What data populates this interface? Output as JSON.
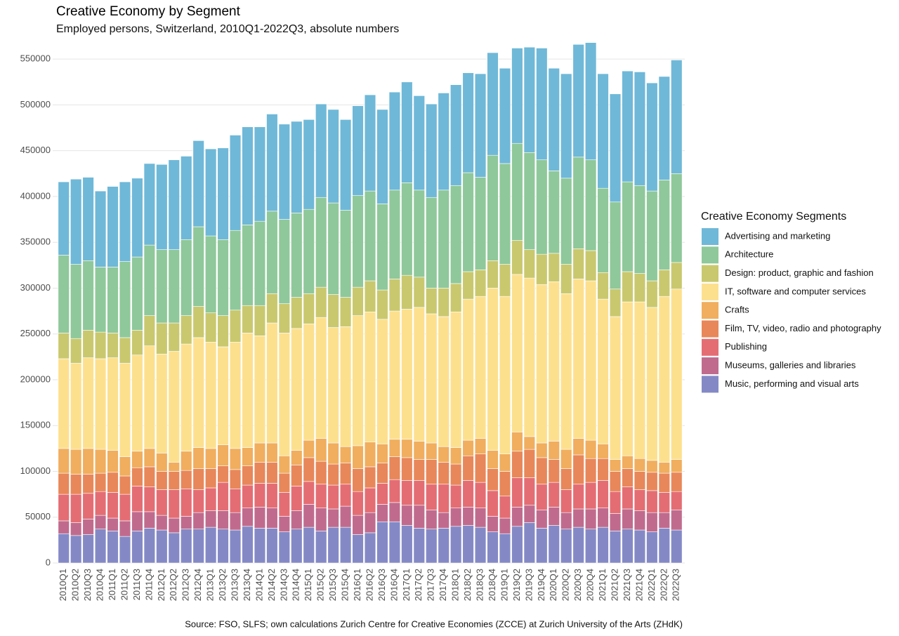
{
  "chart_data": {
    "type": "stacked_bar",
    "title": "Creative Economy by Segment",
    "subtitle": "Employed persons, Switzerland, 2010Q1-2022Q3, absolute numbers",
    "source": "Source: FSO, SLFS; own calculations Zurich Centre for Creative Economies (ZCCE) at Zurich University of the Arts (ZHdK)",
    "legend_title": "Creative Economy Segments",
    "legend_position": "right",
    "grid": true,
    "ylim": [
      0,
      580000
    ],
    "yticks": [
      0,
      50000,
      100000,
      150000,
      200000,
      250000,
      300000,
      350000,
      400000,
      450000,
      500000,
      550000
    ],
    "categories": [
      "2010Q1",
      "2010Q2",
      "2010Q3",
      "2010Q4",
      "2011Q1",
      "2011Q2",
      "2011Q3",
      "2011Q4",
      "2012Q1",
      "2012Q2",
      "2012Q3",
      "2012Q4",
      "2013Q1",
      "2013Q2",
      "2013Q3",
      "2013Q4",
      "2014Q1",
      "2014Q2",
      "2014Q3",
      "2014Q4",
      "2015Q1",
      "2015Q2",
      "2015Q3",
      "2015Q4",
      "2016Q1",
      "2016Q2",
      "2016Q3",
      "2016Q4",
      "2017Q1",
      "2017Q2",
      "2017Q3",
      "2017Q4",
      "2018Q1",
      "2018Q2",
      "2018Q3",
      "2018Q4",
      "2019Q1",
      "2019Q2",
      "2019Q3",
      "2019Q4",
      "2020Q1",
      "2020Q2",
      "2020Q3",
      "2020Q4",
      "2021Q1",
      "2021Q2",
      "2021Q3",
      "2021Q4",
      "2022Q1",
      "2022Q2",
      "2022Q3"
    ],
    "series": [
      {
        "name": "Advertising and marketing",
        "color": "#6fb8d8",
        "values": [
          80000,
          93000,
          91000,
          83000,
          88000,
          87000,
          86000,
          89000,
          93000,
          98000,
          91000,
          94000,
          95000,
          100000,
          104000,
          107000,
          103000,
          106000,
          104000,
          100000,
          98000,
          102000,
          102000,
          99000,
          98000,
          105000,
          103000,
          107000,
          110000,
          103000,
          102000,
          106000,
          110000,
          109000,
          113000,
          112000,
          104000,
          104000,
          115000,
          122000,
          112000,
          114000,
          123000,
          128000,
          125000,
          118000,
          121000,
          124000,
          118000,
          113000,
          124000
        ]
      },
      {
        "name": "Architecture",
        "color": "#8fc89a",
        "values": [
          85000,
          81000,
          76000,
          71000,
          72000,
          83000,
          80000,
          77000,
          80000,
          80000,
          83000,
          87000,
          84000,
          83000,
          87000,
          88000,
          92000,
          90000,
          92000,
          92000,
          92000,
          98000,
          100000,
          95000,
          100000,
          98000,
          94000,
          97000,
          101000,
          95000,
          99000,
          107000,
          107000,
          108000,
          101000,
          115000,
          110000,
          106000,
          106000,
          103000,
          90000,
          94000,
          100000,
          99000,
          92000,
          95000,
          98000,
          96000,
          98000,
          98000,
          97000
        ]
      },
      {
        "name": "Design: product, graphic and fashion",
        "color": "#c9c86e",
        "values": [
          28000,
          27000,
          30000,
          29000,
          27000,
          28000,
          27000,
          33000,
          34000,
          31000,
          31000,
          34000,
          32000,
          34000,
          35000,
          30000,
          33000,
          32000,
          32000,
          34000,
          33000,
          33000,
          36000,
          32000,
          31000,
          34000,
          32000,
          35000,
          37000,
          33000,
          28000,
          31000,
          31000,
          30000,
          29000,
          30000,
          35000,
          37000,
          31000,
          33000,
          31000,
          32000,
          33000,
          33000,
          29000,
          30000,
          33000,
          31000,
          29000,
          29000,
          29000
        ]
      },
      {
        "name": "IT, software and computer services",
        "color": "#fde08e",
        "values": [
          98000,
          94000,
          99000,
          99000,
          101000,
          102000,
          105000,
          112000,
          108000,
          121000,
          117000,
          120000,
          116000,
          107000,
          116000,
          125000,
          117000,
          131000,
          134000,
          133000,
          127000,
          132000,
          126000,
          131000,
          142000,
          142000,
          136000,
          140000,
          142000,
          146000,
          141000,
          142000,
          148000,
          154000,
          155000,
          177000,
          172000,
          172000,
          173000,
          173000,
          174000,
          170000,
          174000,
          174000,
          158000,
          156000,
          168000,
          171000,
          167000,
          181000,
          186000
        ]
      },
      {
        "name": "Crafts",
        "color": "#f0ae5e",
        "values": [
          27000,
          27000,
          28000,
          26000,
          24000,
          21000,
          18000,
          20000,
          20000,
          10000,
          21000,
          23000,
          22000,
          23000,
          23000,
          20000,
          21000,
          21000,
          19000,
          16000,
          19000,
          25000,
          23000,
          18000,
          25000,
          27000,
          21000,
          19000,
          20000,
          20000,
          18000,
          17000,
          18000,
          17000,
          17000,
          20000,
          19000,
          21000,
          14000,
          16000,
          20000,
          21000,
          18000,
          20000,
          16000,
          13000,
          14000,
          14000,
          13000,
          12000,
          14000
        ]
      },
      {
        "name": "Film, TV, video, radio and photography",
        "color": "#e8875a",
        "values": [
          23000,
          22000,
          21000,
          20000,
          22000,
          20000,
          20000,
          22000,
          20000,
          20000,
          20000,
          23000,
          21000,
          18000,
          21000,
          21000,
          23000,
          23000,
          21000,
          23000,
          26000,
          25000,
          23000,
          23000,
          25000,
          23000,
          22000,
          25000,
          25000,
          23000,
          27000,
          24000,
          23000,
          27000,
          31000,
          24000,
          27000,
          29000,
          31000,
          29000,
          25000,
          23000,
          32000,
          26000,
          24000,
          22000,
          20000,
          20000,
          20000,
          21000,
          21000
        ]
      },
      {
        "name": "Publishing",
        "color": "#e46d74",
        "values": [
          29000,
          31000,
          28000,
          26000,
          28000,
          29000,
          28000,
          27000,
          28000,
          31000,
          30000,
          25000,
          25000,
          31000,
          26000,
          25000,
          26000,
          27000,
          26000,
          27000,
          25000,
          26000,
          26000,
          24000,
          26000,
          27000,
          23000,
          25000,
          27000,
          27000,
          28000,
          31000,
          25000,
          29000,
          28000,
          28000,
          24000,
          32000,
          30000,
          28000,
          27000,
          25000,
          27000,
          29000,
          30000,
          24000,
          24000,
          23000,
          24000,
          22000,
          20000
        ]
      },
      {
        "name": "Museums, galleries and libraries",
        "color": "#c06b8e",
        "values": [
          14000,
          14000,
          17000,
          15000,
          14000,
          17000,
          21000,
          18000,
          16000,
          16000,
          14000,
          18000,
          18000,
          20000,
          19000,
          20000,
          23000,
          22000,
          17000,
          20000,
          25000,
          25000,
          20000,
          23000,
          21000,
          22000,
          19000,
          21000,
          22000,
          25000,
          21000,
          17000,
          20000,
          20000,
          21000,
          17000,
          17000,
          21000,
          19000,
          20000,
          20000,
          18000,
          20000,
          22000,
          21000,
          19000,
          22000,
          21000,
          21000,
          17000,
          22000
        ]
      },
      {
        "name": "Music, performing and visual arts",
        "color": "#8489c6",
        "values": [
          32000,
          30000,
          31000,
          37000,
          35000,
          29000,
          35000,
          38000,
          36000,
          33000,
          37000,
          37000,
          39000,
          37000,
          36000,
          40000,
          38000,
          38000,
          34000,
          37000,
          39000,
          35000,
          39000,
          39000,
          31000,
          33000,
          45000,
          45000,
          41000,
          38000,
          37000,
          38000,
          40000,
          41000,
          39000,
          34000,
          32000,
          40000,
          44000,
          38000,
          41000,
          37000,
          39000,
          37000,
          39000,
          35000,
          37000,
          36000,
          34000,
          38000,
          36000
        ]
      }
    ]
  }
}
